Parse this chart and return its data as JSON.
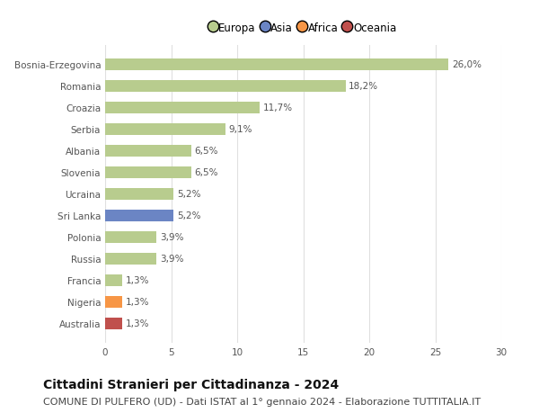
{
  "categories": [
    "Australia",
    "Nigeria",
    "Francia",
    "Russia",
    "Polonia",
    "Sri Lanka",
    "Ucraina",
    "Slovenia",
    "Albania",
    "Serbia",
    "Croazia",
    "Romania",
    "Bosnia-Erzegovina"
  ],
  "values": [
    1.3,
    1.3,
    1.3,
    3.9,
    3.9,
    5.2,
    5.2,
    6.5,
    6.5,
    9.1,
    11.7,
    18.2,
    26.0
  ],
  "colors": [
    "#c0504d",
    "#f79646",
    "#b8cc8e",
    "#b8cc8e",
    "#b8cc8e",
    "#6b85c4",
    "#b8cc8e",
    "#b8cc8e",
    "#b8cc8e",
    "#b8cc8e",
    "#b8cc8e",
    "#b8cc8e",
    "#b8cc8e"
  ],
  "labels": [
    "1,3%",
    "1,3%",
    "1,3%",
    "3,9%",
    "3,9%",
    "5,2%",
    "5,2%",
    "6,5%",
    "6,5%",
    "9,1%",
    "11,7%",
    "18,2%",
    "26,0%"
  ],
  "legend": [
    {
      "label": "Europa",
      "color": "#b8cc8e"
    },
    {
      "label": "Asia",
      "color": "#6b85c4"
    },
    {
      "label": "Africa",
      "color": "#f79646"
    },
    {
      "label": "Oceania",
      "color": "#c0504d"
    }
  ],
  "xlim": [
    0,
    30
  ],
  "xticks": [
    0,
    5,
    10,
    15,
    20,
    25,
    30
  ],
  "title": "Cittadini Stranieri per Cittadinanza - 2024",
  "subtitle": "COMUNE DI PULFERO (UD) - Dati ISTAT al 1° gennaio 2024 - Elaborazione TUTTITALIA.IT",
  "title_fontsize": 10,
  "subtitle_fontsize": 8,
  "bar_height": 0.55,
  "figsize": [
    6.0,
    4.6
  ],
  "dpi": 100,
  "bg_color": "#ffffff",
  "grid_color": "#e0e0e0",
  "label_fontsize": 7.5,
  "tick_fontsize": 7.5
}
